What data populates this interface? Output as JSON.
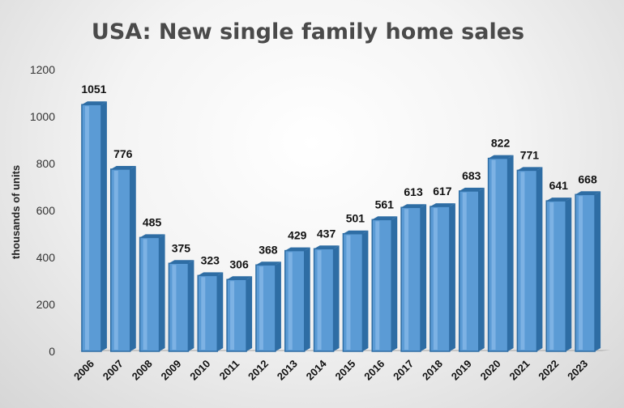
{
  "chart_data": {
    "type": "bar",
    "title": "USA: New single family home sales",
    "ylabel": "thousands of units",
    "xlabel": "",
    "categories": [
      "2006",
      "2007",
      "2008",
      "2009",
      "2010",
      "2011",
      "2012",
      "2013",
      "2014",
      "2015",
      "2016",
      "2017",
      "2018",
      "2019",
      "2020",
      "2021",
      "2022",
      "2023"
    ],
    "values": [
      1051,
      776,
      485,
      375,
      323,
      306,
      368,
      429,
      437,
      501,
      561,
      613,
      617,
      683,
      822,
      771,
      641,
      668
    ],
    "ylim": [
      0,
      1200
    ],
    "yticks": [
      0,
      200,
      400,
      600,
      800,
      1000,
      1200
    ],
    "grid": false,
    "legend": "none",
    "colors": {
      "bar": "#5b9bd5",
      "bar_dark": "#2e6da4",
      "bar_light": "#8cbcea",
      "floor": "#a9a9a9"
    }
  }
}
